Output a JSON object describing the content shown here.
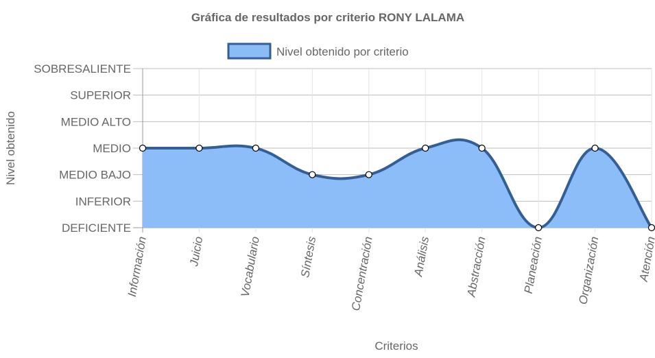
{
  "chart_data": {
    "type": "area",
    "title": "Gráfica de resultados por criterio RONY LALAMA",
    "xlabel": "Criterios",
    "ylabel": "Nivel obtenido",
    "categories": [
      "Información",
      "Juicio",
      "Vocabulario",
      "Síntesis",
      "Concentración",
      "Análisis",
      "Abstracción",
      "Planeación",
      "Organización",
      "Atención"
    ],
    "y_levels": [
      "DEFICIENTE",
      "INFERIOR",
      "MEDIO BAJO",
      "MEDIO",
      "MEDIO ALTO",
      "SUPERIOR",
      "SOBRESALIENTE"
    ],
    "ylim": [
      0,
      6
    ],
    "grid": true,
    "legend_position": "top",
    "series": [
      {
        "name": "Nivel obtenido por criterio",
        "values": [
          3,
          3,
          3,
          2,
          2,
          3,
          3,
          0,
          3,
          0
        ],
        "fill_color": "#8bbcf8",
        "line_color": "#335f94"
      }
    ]
  }
}
